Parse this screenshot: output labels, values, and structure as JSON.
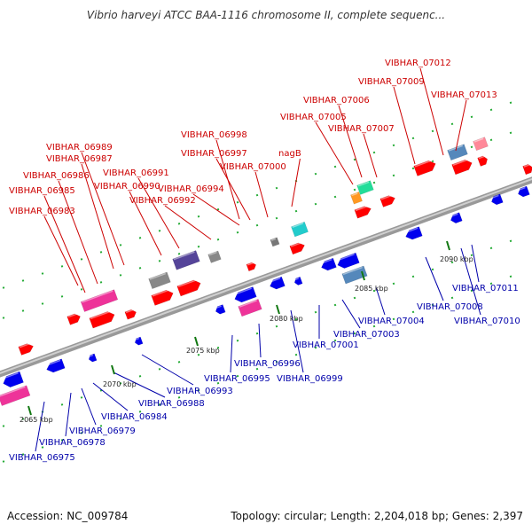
{
  "title": "Vibrio harveyi ATCC BAA-1116 chromosome II, complete sequenc...",
  "footer": {
    "accession": "Accession: NC_009784",
    "stats": "Topology: circular; Length: 2,204,018 bp; Genes: 2,397"
  },
  "colors": {
    "forward_label": "#cc0000",
    "reverse_label": "#0000aa",
    "forward_gene": "#ff0000",
    "reverse_gene": "#0000ee",
    "tick": "#117711"
  },
  "scale_ticks": [
    "2065 kbp",
    "2070 kbp",
    "2075 kbp",
    "2080 kbp",
    "2085 kbp",
    "2090 kbp"
  ],
  "forward_labels": [
    "VIBHAR_06983",
    "VIBHAR_06985",
    "VIBHAR_06986",
    "VIBHAR_06987",
    "VIBHAR_06989",
    "VIBHAR_06990",
    "VIBHAR_06991",
    "VIBHAR_06992",
    "VIBHAR_06994",
    "VIBHAR_06997",
    "VIBHAR_06998",
    "VIBHAR_07000",
    "nagB",
    "VIBHAR_07005",
    "VIBHAR_07006",
    "VIBHAR_07007",
    "VIBHAR_07009",
    "VIBHAR_07012",
    "VIBHAR_07013"
  ],
  "reverse_labels": [
    "VIBHAR_06975",
    "VIBHAR_06978",
    "VIBHAR_06979",
    "VIBHAR_06984",
    "VIBHAR_06988",
    "VIBHAR_06993",
    "VIBHAR_06995",
    "VIBHAR_06996",
    "VIBHAR_06999",
    "VIBHAR_07001",
    "VIBHAR_07003",
    "VIBHAR_07004",
    "VIBHAR_07008",
    "VIBHAR_07010",
    "VIBHAR_07011"
  ]
}
